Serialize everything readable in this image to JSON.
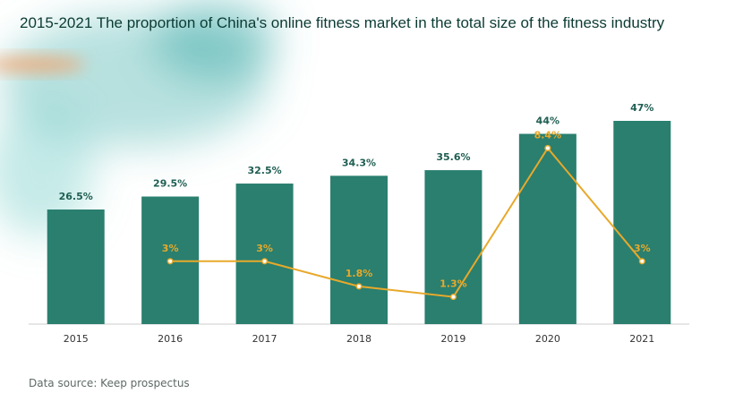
{
  "chart_data": {
    "type": "bar",
    "title": "2015-2021 The proportion of China's online fitness market in the total size of the fitness industry",
    "categories": [
      "2015",
      "2016",
      "2017",
      "2018",
      "2019",
      "2020",
      "2021"
    ],
    "series": [
      {
        "type": "bar",
        "values": [
          26.5,
          29.5,
          32.5,
          34.3,
          35.6,
          44,
          47
        ],
        "labels": [
          "26.5%",
          "29.5%",
          "32.5%",
          "34.3%",
          "35.6%",
          "44%",
          "47%"
        ]
      },
      {
        "type": "line",
        "values": [
          null,
          3,
          3,
          1.8,
          1.3,
          8.4,
          3
        ],
        "labels": [
          "",
          "3%",
          "3%",
          "1.8%",
          "1.3%",
          "8.4%",
          "3%"
        ]
      }
    ],
    "grid": false,
    "legend": "none"
  },
  "colors": {
    "bar": "#2a7f6f",
    "line": "#e8a92a",
    "bar_label": "#1f5e52",
    "axis": "#cccccc"
  },
  "source": "Data source: Keep prospectus"
}
